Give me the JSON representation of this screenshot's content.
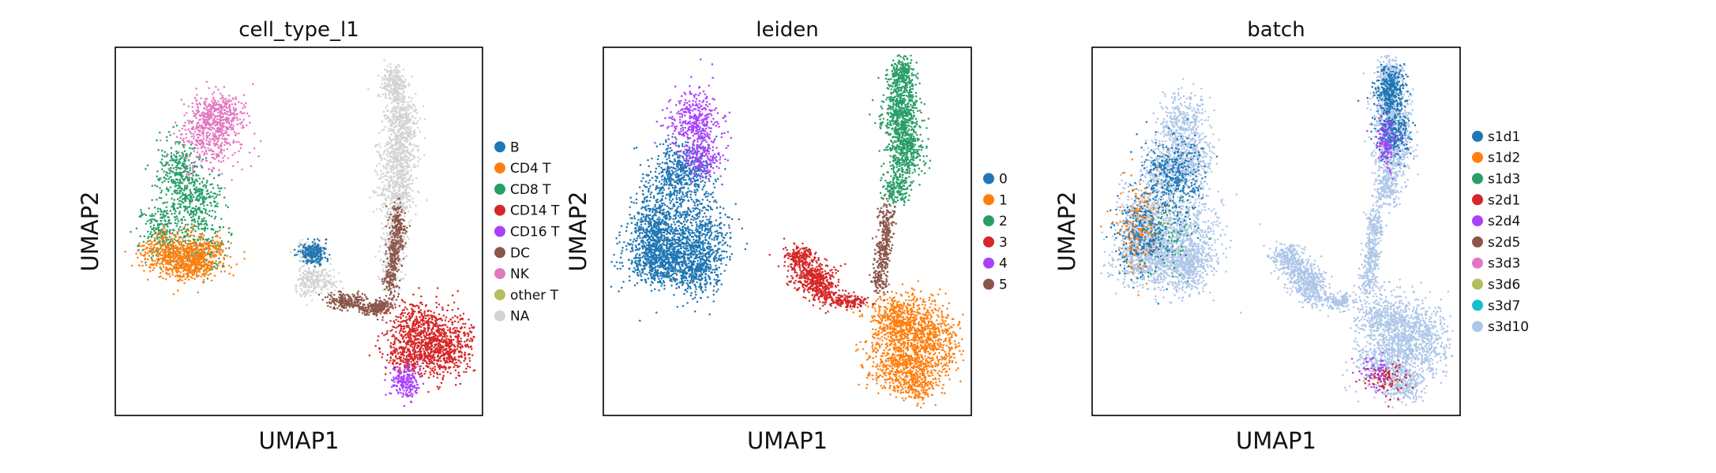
{
  "chart_data": [
    {
      "type": "scatter",
      "title": "cell_type_l1",
      "xlabel": "UMAP1",
      "ylabel": "UMAP2",
      "legend_placement": "right",
      "grid": false,
      "categories": [
        {
          "name": "B",
          "color": "#1f77b4"
        },
        {
          "name": "CD4 T",
          "color": "#ff7f0e"
        },
        {
          "name": "CD8 T",
          "color": "#279e68"
        },
        {
          "name": "CD14 T",
          "color": "#d62728"
        },
        {
          "name": "CD16 T",
          "color": "#aa40fc"
        },
        {
          "name": "DC",
          "color": "#8c564b"
        },
        {
          "name": "NK",
          "color": "#e377c2"
        },
        {
          "name": "other T",
          "color": "#b5bd61"
        },
        {
          "name": "NA",
          "color": "#d3d3d3"
        }
      ]
    },
    {
      "type": "scatter",
      "title": "leiden",
      "xlabel": "UMAP1",
      "ylabel": "UMAP2",
      "legend_placement": "right",
      "grid": false,
      "categories": [
        {
          "name": "0",
          "color": "#1f77b4"
        },
        {
          "name": "1",
          "color": "#ff7f0e"
        },
        {
          "name": "2",
          "color": "#279e68"
        },
        {
          "name": "3",
          "color": "#d62728"
        },
        {
          "name": "4",
          "color": "#aa40fc"
        },
        {
          "name": "5",
          "color": "#8c564b"
        }
      ]
    },
    {
      "type": "scatter",
      "title": "batch",
      "xlabel": "UMAP1",
      "ylabel": "UMAP2",
      "legend_placement": "right",
      "grid": false,
      "categories": [
        {
          "name": "s1d1",
          "color": "#1f77b4"
        },
        {
          "name": "s1d2",
          "color": "#ff7f0e"
        },
        {
          "name": "s1d3",
          "color": "#279e68"
        },
        {
          "name": "s2d1",
          "color": "#d62728"
        },
        {
          "name": "s2d4",
          "color": "#aa40fc"
        },
        {
          "name": "s2d5",
          "color": "#8c564b"
        },
        {
          "name": "s3d3",
          "color": "#e377c2"
        },
        {
          "name": "s3d6",
          "color": "#b5bd61"
        },
        {
          "name": "s3d7",
          "color": "#17becf"
        },
        {
          "name": "s3d10",
          "color": "#aec7e8"
        }
      ]
    }
  ]
}
